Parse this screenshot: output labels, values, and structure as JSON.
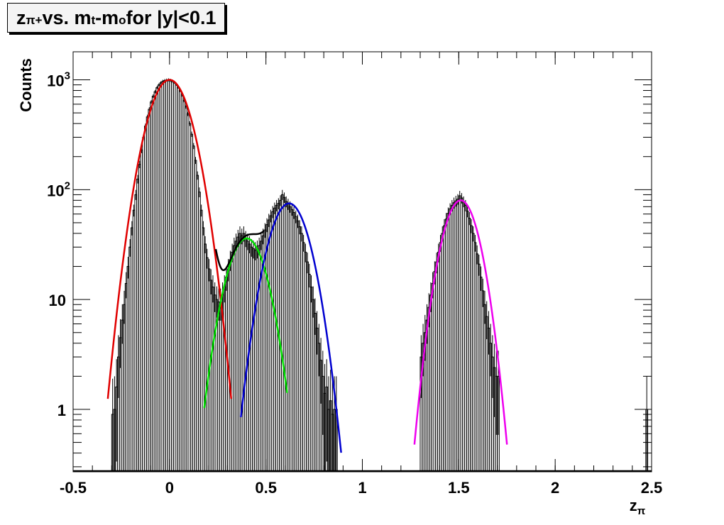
{
  "chart_data": {
    "type": "line",
    "title": {
      "parts": [
        {
          "text": "z",
          "style": "normal"
        },
        {
          "text": "π+",
          "style": "sub"
        },
        {
          "text": " vs. m",
          "style": "normal"
        },
        {
          "text": "t",
          "style": "sub"
        },
        {
          "text": "-m",
          "style": "normal"
        },
        {
          "text": "o",
          "style": "sub"
        },
        {
          "text": " for |y|<0.1",
          "style": "normal"
        }
      ]
    },
    "xlabel": {
      "main": "z",
      "sub": "π"
    },
    "ylabel": "Counts",
    "xlim": [
      -0.5,
      2.5
    ],
    "ylim": [
      0.27,
      1800
    ],
    "yscale": "log",
    "grid": false,
    "legend": "none",
    "x_ticks": [
      {
        "value": -0.5,
        "label": "-0.5"
      },
      {
        "value": 0,
        "label": "0"
      },
      {
        "value": 0.5,
        "label": "0.5"
      },
      {
        "value": 1,
        "label": "1"
      },
      {
        "value": 1.5,
        "label": "1.5"
      },
      {
        "value": 2,
        "label": "2"
      },
      {
        "value": 2.5,
        "label": "2.5"
      }
    ],
    "y_ticks": [
      {
        "value": 1,
        "label": "1",
        "exp": ""
      },
      {
        "value": 10,
        "label": "10",
        "exp": ""
      },
      {
        "value": 100,
        "label": "10",
        "exp": "2"
      },
      {
        "value": 1000,
        "label": "10",
        "exp": "3"
      }
    ],
    "histogram": {
      "bin_width": 0.01,
      "color": "#000000",
      "bins": [
        [
          -0.3,
          0.9
        ],
        [
          -0.29,
          1.0
        ],
        [
          -0.28,
          1.6
        ],
        [
          -0.27,
          3.0
        ],
        [
          -0.26,
          4.5
        ],
        [
          -0.25,
          6.5
        ],
        [
          -0.24,
          9.0
        ],
        [
          -0.23,
          14
        ],
        [
          -0.22,
          20
        ],
        [
          -0.21,
          30
        ],
        [
          -0.2,
          45
        ],
        [
          -0.19,
          65
        ],
        [
          -0.18,
          90
        ],
        [
          -0.17,
          125
        ],
        [
          -0.16,
          170
        ],
        [
          -0.15,
          230
        ],
        [
          -0.14,
          300
        ],
        [
          -0.13,
          380
        ],
        [
          -0.12,
          460
        ],
        [
          -0.11,
          540
        ],
        [
          -0.1,
          630
        ],
        [
          -0.09,
          710
        ],
        [
          -0.08,
          780
        ],
        [
          -0.07,
          850
        ],
        [
          -0.06,
          900
        ],
        [
          -0.05,
          940
        ],
        [
          -0.04,
          970
        ],
        [
          -0.03,
          985
        ],
        [
          -0.02,
          995
        ],
        [
          -0.01,
          1000
        ],
        [
          0.0,
          990
        ],
        [
          0.01,
          975
        ],
        [
          0.02,
          950
        ],
        [
          0.03,
          910
        ],
        [
          0.04,
          860
        ],
        [
          0.05,
          800
        ],
        [
          0.06,
          730
        ],
        [
          0.07,
          650
        ],
        [
          0.08,
          570
        ],
        [
          0.09,
          490
        ],
        [
          0.1,
          400
        ],
        [
          0.11,
          320
        ],
        [
          0.12,
          250
        ],
        [
          0.13,
          185
        ],
        [
          0.14,
          135
        ],
        [
          0.15,
          95
        ],
        [
          0.16,
          65
        ],
        [
          0.17,
          45
        ],
        [
          0.18,
          32
        ],
        [
          0.19,
          24
        ],
        [
          0.2,
          19
        ],
        [
          0.21,
          15
        ],
        [
          0.22,
          13
        ],
        [
          0.23,
          11
        ],
        [
          0.24,
          10
        ],
        [
          0.25,
          9.5
        ],
        [
          0.26,
          9.5
        ],
        [
          0.27,
          11
        ],
        [
          0.28,
          13
        ],
        [
          0.29,
          16
        ],
        [
          0.3,
          19
        ],
        [
          0.31,
          23
        ],
        [
          0.32,
          27
        ],
        [
          0.33,
          31
        ],
        [
          0.34,
          34
        ],
        [
          0.35,
          37
        ],
        [
          0.36,
          40
        ],
        [
          0.37,
          38
        ],
        [
          0.38,
          40
        ],
        [
          0.39,
          36
        ],
        [
          0.4,
          34
        ],
        [
          0.41,
          32
        ],
        [
          0.42,
          30
        ],
        [
          0.43,
          29
        ],
        [
          0.44,
          28
        ],
        [
          0.45,
          29
        ],
        [
          0.46,
          31
        ],
        [
          0.47,
          34
        ],
        [
          0.48,
          38
        ],
        [
          0.49,
          43
        ],
        [
          0.5,
          48
        ],
        [
          0.51,
          53
        ],
        [
          0.52,
          58
        ],
        [
          0.53,
          63
        ],
        [
          0.54,
          68
        ],
        [
          0.55,
          72
        ],
        [
          0.56,
          75
        ],
        [
          0.57,
          80
        ],
        [
          0.58,
          90
        ],
        [
          0.59,
          85
        ],
        [
          0.6,
          78
        ],
        [
          0.61,
          74
        ],
        [
          0.62,
          70
        ],
        [
          0.63,
          66
        ],
        [
          0.64,
          62
        ],
        [
          0.65,
          57
        ],
        [
          0.66,
          52
        ],
        [
          0.67,
          46
        ],
        [
          0.68,
          40
        ],
        [
          0.69,
          33
        ],
        [
          0.7,
          27
        ],
        [
          0.71,
          22
        ],
        [
          0.72,
          17
        ],
        [
          0.73,
          13
        ],
        [
          0.74,
          10
        ],
        [
          0.75,
          7.5
        ],
        [
          0.76,
          5.5
        ],
        [
          0.77,
          4.0
        ],
        [
          0.78,
          2.8
        ],
        [
          0.79,
          2.0
        ],
        [
          0.8,
          1.4
        ],
        [
          0.81,
          1.6
        ],
        [
          0.82,
          1.0
        ],
        [
          0.83,
          1.2
        ],
        [
          0.84,
          0.9
        ],
        [
          0.85,
          1.0
        ],
        [
          0.86,
          1.0
        ],
        [
          1.3,
          3.0
        ],
        [
          1.31,
          4.0
        ],
        [
          1.32,
          5.0
        ],
        [
          1.33,
          6.5
        ],
        [
          1.34,
          8.5
        ],
        [
          1.35,
          11
        ],
        [
          1.36,
          14
        ],
        [
          1.37,
          18
        ],
        [
          1.38,
          22
        ],
        [
          1.39,
          27
        ],
        [
          1.4,
          33
        ],
        [
          1.41,
          40
        ],
        [
          1.42,
          47
        ],
        [
          1.43,
          54
        ],
        [
          1.44,
          61
        ],
        [
          1.45,
          67
        ],
        [
          1.46,
          72
        ],
        [
          1.47,
          76
        ],
        [
          1.48,
          79
        ],
        [
          1.49,
          82
        ],
        [
          1.5,
          88
        ],
        [
          1.51,
          84
        ],
        [
          1.52,
          78
        ],
        [
          1.53,
          72
        ],
        [
          1.54,
          64
        ],
        [
          1.55,
          55
        ],
        [
          1.56,
          47
        ],
        [
          1.57,
          40
        ],
        [
          1.58,
          33
        ],
        [
          1.59,
          26
        ],
        [
          1.6,
          21
        ],
        [
          1.61,
          16
        ],
        [
          1.62,
          12
        ],
        [
          1.63,
          9.0
        ],
        [
          1.64,
          7.0
        ],
        [
          1.65,
          5.5
        ],
        [
          1.66,
          4.0
        ],
        [
          1.67,
          3.0
        ],
        [
          1.68,
          2.4
        ],
        [
          1.69,
          2.0
        ],
        [
          1.7,
          2.0
        ],
        [
          2.47,
          1.0
        ]
      ]
    },
    "series": [
      {
        "color": "#e00000",
        "gaussian": {
          "amplitude": 1000,
          "mean": 0.0,
          "sigma": 0.0875
        },
        "range": [
          -0.32,
          0.32
        ]
      },
      {
        "color": "#00e000",
        "gaussian": {
          "amplitude": 36,
          "mean": 0.4,
          "sigma": 0.0825
        },
        "range": [
          0.18,
          0.61
        ]
      },
      {
        "color": "#0000d0",
        "gaussian": {
          "amplitude": 75,
          "mean": 0.62,
          "sigma": 0.0835
        },
        "range": [
          0.37,
          0.89
        ]
      },
      {
        "color": "#ee00ee",
        "gaussian": {
          "amplitude": 80,
          "mean": 1.51,
          "sigma": 0.075
        },
        "range": [
          1.27,
          1.75
        ]
      },
      {
        "color": "#000000",
        "sum_of_gaussians": [
          0,
          1,
          2
        ],
        "range": [
          0.24,
          0.49
        ]
      }
    ],
    "baseline_color": "#000000"
  }
}
